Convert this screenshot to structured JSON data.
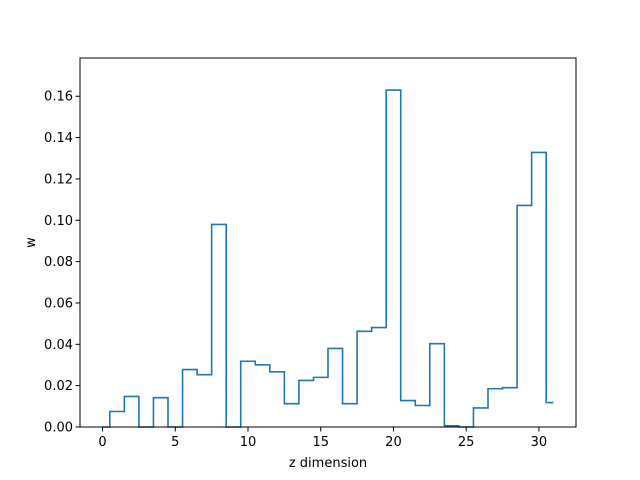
{
  "chart_data": {
    "type": "line",
    "style": "step",
    "title": "",
    "xlabel": "z dimension",
    "ylabel": "w",
    "xlim": [
      -1.55,
      32.55
    ],
    "ylim": [
      0,
      0.1785
    ],
    "grid": false,
    "x_ticks": [
      0,
      5,
      10,
      15,
      20,
      25,
      30
    ],
    "x_tick_labels": [
      "0",
      "5",
      "10",
      "15",
      "20",
      "25",
      "30"
    ],
    "y_ticks": [
      0.0,
      0.02,
      0.04,
      0.06,
      0.08,
      0.1,
      0.12,
      0.14,
      0.16
    ],
    "y_tick_labels": [
      "0.00",
      "0.02",
      "0.04",
      "0.06",
      "0.08",
      "0.10",
      "0.12",
      "0.14",
      "0.16"
    ],
    "color": "#1f77b4",
    "x": [
      0,
      1,
      2,
      3,
      4,
      5,
      6,
      7,
      8,
      9,
      10,
      11,
      12,
      13,
      14,
      15,
      16,
      17,
      18,
      19,
      20,
      21,
      22,
      23,
      24,
      25,
      26,
      27,
      28,
      29,
      30,
      31
    ],
    "values": [
      0.0,
      0.0075,
      0.0148,
      0.0,
      0.0142,
      0.0,
      0.0278,
      0.0253,
      0.098,
      0.0,
      0.0318,
      0.0301,
      0.0267,
      0.0113,
      0.0225,
      0.024,
      0.038,
      0.0113,
      0.0463,
      0.0481,
      0.163,
      0.0128,
      0.0104,
      0.0403,
      0.0006,
      0.0,
      0.0092,
      0.0185,
      0.019,
      0.1072,
      0.1328,
      0.0118
    ]
  }
}
